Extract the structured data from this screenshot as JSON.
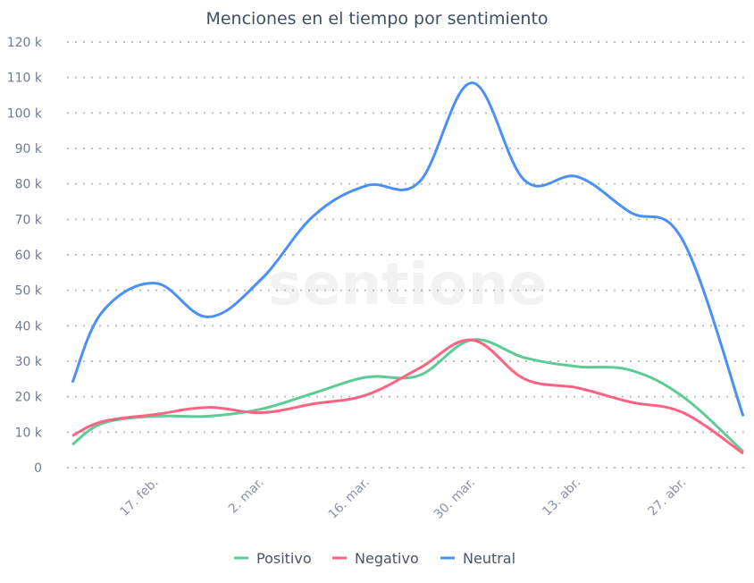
{
  "chart_data": {
    "type": "line",
    "title": "Menciones en el tiempo por sentimiento",
    "xlabel": "",
    "ylabel": "",
    "ylim": [
      0,
      120000
    ],
    "yticks": [
      0,
      10000,
      20000,
      30000,
      40000,
      50000,
      60000,
      70000,
      80000,
      90000,
      100000,
      110000,
      120000
    ],
    "ytick_labels": [
      "0",
      "10 k",
      "20 k",
      "30 k",
      "40 k",
      "50 k",
      "60 k",
      "70 k",
      "80 k",
      "90 k",
      "100 k",
      "110 k",
      "120 k"
    ],
    "xtick_labels": [
      "17. feb.",
      "2. mar.",
      "16. mar.",
      "30. mar.",
      "13. abr.",
      "27. abr."
    ],
    "xtick_days": [
      11,
      25,
      39,
      53,
      67,
      81
    ],
    "x_days": [
      0,
      4,
      11,
      18,
      25,
      32,
      39,
      46,
      53,
      60,
      67,
      74,
      81,
      89
    ],
    "grid": true,
    "legend": "bottom",
    "watermark": "sentione",
    "series": [
      {
        "name": "Positivo",
        "color": "#5ccb94",
        "values": [
          6500,
          12500,
          14500,
          14500,
          16500,
          21000,
          25500,
          26000,
          36000,
          31000,
          28500,
          27500,
          20000,
          4500
        ]
      },
      {
        "name": "Negativo",
        "color": "#ff6384",
        "values": [
          9000,
          13000,
          15000,
          17000,
          15500,
          18000,
          20500,
          28000,
          36000,
          25000,
          22500,
          18500,
          15500,
          4000
        ]
      },
      {
        "name": "Neutral",
        "color": "#4b8ff7",
        "values": [
          24000,
          44000,
          52000,
          42500,
          53000,
          71000,
          79500,
          80500,
          108500,
          81000,
          82000,
          72000,
          64000,
          14500
        ]
      }
    ]
  }
}
